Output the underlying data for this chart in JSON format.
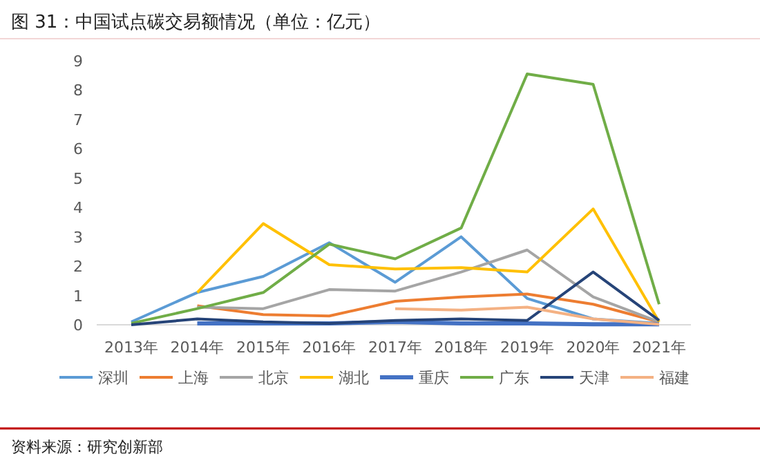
{
  "chart_data": {
    "type": "line",
    "title": "图 31：中国试点碳交易额情况（单位：亿元）",
    "categories": [
      "2013年",
      "2014年",
      "2015年",
      "2016年",
      "2017年",
      "2018年",
      "2019年",
      "2020年",
      "2021年"
    ],
    "series": [
      {
        "name": "深圳",
        "color": "#5b9bd5",
        "values": [
          0.1,
          1.1,
          1.65,
          2.8,
          1.45,
          3.0,
          0.9,
          0.2,
          0.05
        ]
      },
      {
        "name": "上海",
        "color": "#ed7d31",
        "values": [
          null,
          0.65,
          0.35,
          0.3,
          0.8,
          0.95,
          1.05,
          0.7,
          0.1
        ]
      },
      {
        "name": "北京",
        "color": "#a5a5a5",
        "values": [
          null,
          0.6,
          0.55,
          1.2,
          1.15,
          1.8,
          2.55,
          0.95,
          0.1
        ]
      },
      {
        "name": "湖北",
        "color": "#ffc000",
        "values": [
          null,
          1.1,
          3.45,
          2.05,
          1.9,
          1.95,
          1.8,
          3.95,
          0.1
        ]
      },
      {
        "name": "重庆",
        "color": "#4472c4",
        "values": [
          null,
          0.05,
          0.05,
          0.05,
          0.1,
          0.05,
          0.05,
          0.02,
          0.02
        ]
      },
      {
        "name": "广东",
        "color": "#70ad47",
        "values": [
          0.05,
          0.55,
          1.1,
          2.75,
          2.25,
          3.3,
          8.55,
          8.2,
          0.7
        ]
      },
      {
        "name": "天津",
        "color": "#264478",
        "values": [
          0,
          0.2,
          0.1,
          0.05,
          0.15,
          0.2,
          0.15,
          1.8,
          0.15
        ]
      },
      {
        "name": "福建",
        "color": "#f4b183",
        "values": [
          null,
          null,
          null,
          null,
          0.55,
          0.5,
          0.6,
          0.2,
          0.02
        ]
      }
    ],
    "ylim": [
      0,
      9
    ],
    "yticks": [
      0,
      1,
      2,
      3,
      4,
      5,
      6,
      7,
      8,
      9
    ],
    "grid": false,
    "legend": "bottom",
    "marker": "none",
    "line_style": "solid",
    "annotations": [
      "资料来源：研究创新部"
    ]
  }
}
